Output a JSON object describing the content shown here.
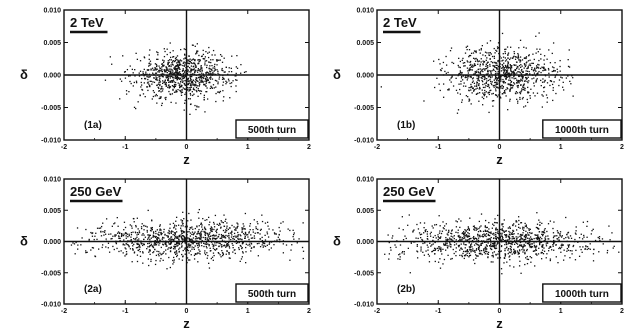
{
  "chart_data": [
    {
      "type": "scatter",
      "energy": "2 TeV",
      "panel_label": "(1a)",
      "turn_label": "500th turn",
      "xlabel": "z",
      "ylabel": "δ",
      "xlim": [
        -2,
        2
      ],
      "ylim": [
        -0.01,
        0.01
      ],
      "xticks": [
        "-2",
        "-1",
        "0",
        "1",
        "2"
      ],
      "yticks": [
        "0.010",
        "0.005",
        "0.000",
        "-0.005",
        "-0.010"
      ],
      "spread": {
        "z_center": -0.05,
        "z_sigma": 0.4,
        "delta_center": 0.0,
        "delta_sigma": 0.0018
      },
      "n_points": 900
    },
    {
      "type": "scatter",
      "energy": "2 TeV",
      "panel_label": "(1b)",
      "turn_label": "1000th turn",
      "xlabel": "z",
      "ylabel": "δ",
      "xlim": [
        -2,
        2
      ],
      "ylim": [
        -0.01,
        0.01
      ],
      "xticks": [
        "-2",
        "-1",
        "0",
        "1",
        "2"
      ],
      "yticks": [
        "0.010",
        "0.005",
        "0.000",
        "-0.005",
        "-0.010"
      ],
      "spread": {
        "z_center": 0.05,
        "z_sigma": 0.45,
        "delta_center": 0.0,
        "delta_sigma": 0.002
      },
      "n_points": 900
    },
    {
      "type": "scatter",
      "energy": "250 GeV",
      "panel_label": "(2a)",
      "turn_label": "500th turn",
      "xlabel": "z",
      "ylabel": "δ",
      "xlim": [
        -2,
        2
      ],
      "ylim": [
        -0.01,
        0.01
      ],
      "xticks": [
        "-2",
        "-1",
        "0",
        "1",
        "2"
      ],
      "yticks": [
        "0.010",
        "0.005",
        "0.000",
        "-0.005",
        "-0.010"
      ],
      "spread": {
        "z_center": 0.0,
        "z_sigma": 0.85,
        "delta_center": 0.0003,
        "delta_sigma": 0.0016
      },
      "n_points": 1100
    },
    {
      "type": "scatter",
      "energy": "250 GeV",
      "panel_label": "(2b)",
      "turn_label": "1000th turn",
      "xlabel": "z",
      "ylabel": "δ",
      "xlim": [
        -2,
        2
      ],
      "ylim": [
        -0.01,
        0.01
      ],
      "xticks": [
        "-2",
        "-1",
        "0",
        "1",
        "2"
      ],
      "yticks": [
        "0.010",
        "0.005",
        "0.000",
        "-0.005",
        "-0.010"
      ],
      "spread": {
        "z_center": 0.0,
        "z_sigma": 0.8,
        "delta_center": 0.0,
        "delta_sigma": 0.0016
      },
      "n_points": 1100
    }
  ]
}
